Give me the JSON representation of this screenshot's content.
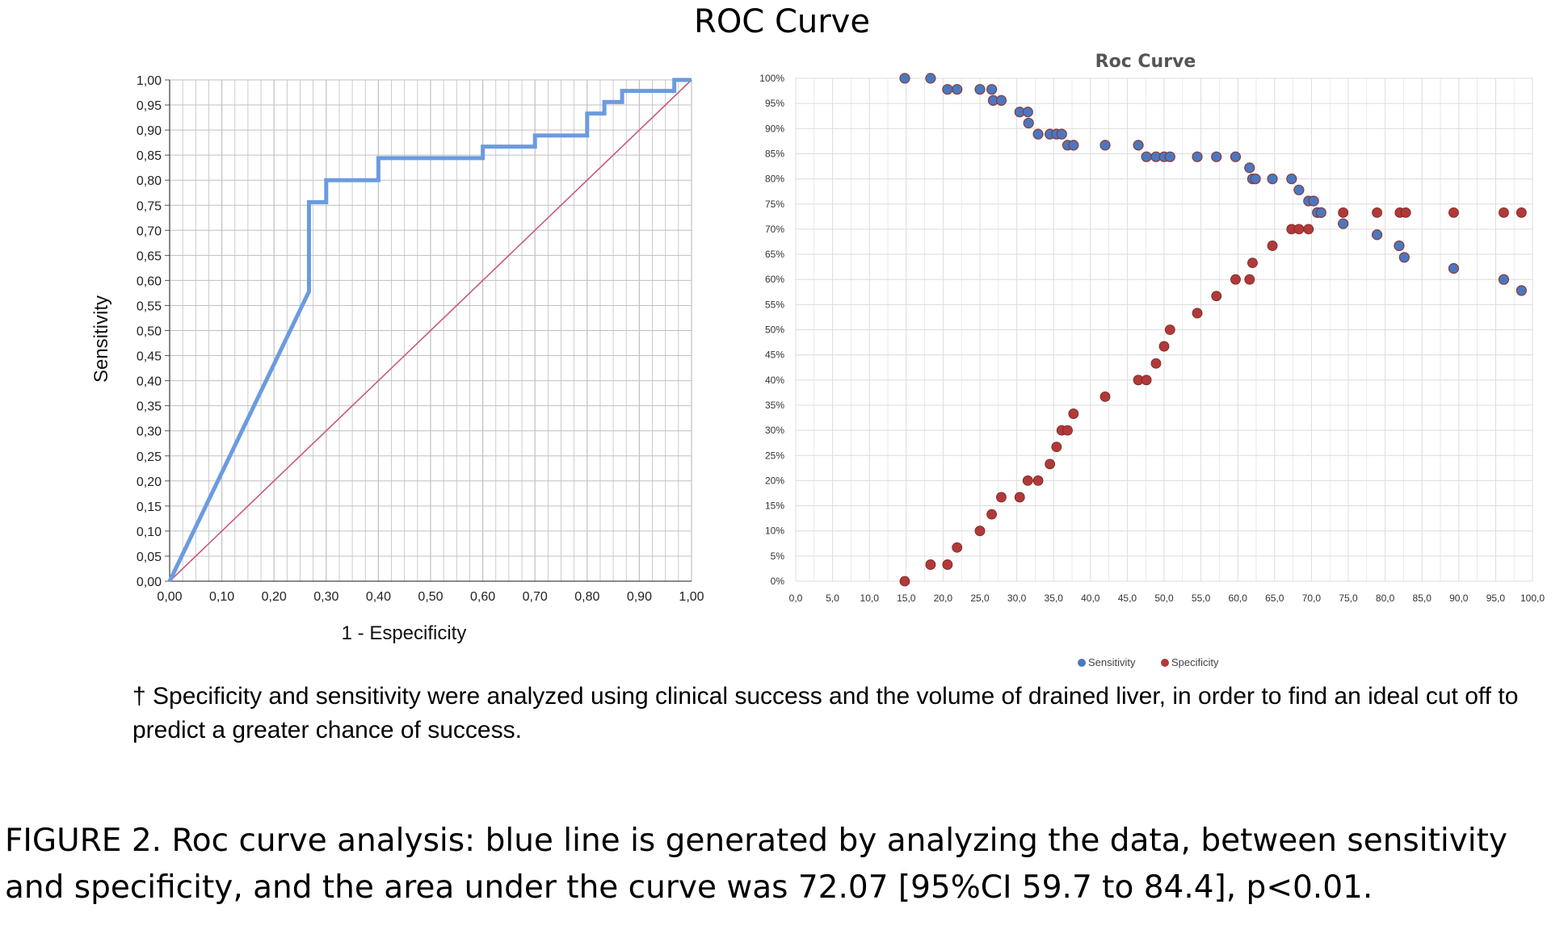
{
  "main_title": "ROC Curve",
  "footnote": "† Specificity and sensitivity were analyzed using clinical success and the volume of drained liver, in order to find an ideal cut off to predict a greater chance of success.",
  "caption": "FIGURE 2. Roc curve analysis: blue line is generated by analyzing the data, between sensitivity and specificity, and the area under the curve was 72.07 [95%CI 59.7 to 84.4], p<0.01.",
  "colors": {
    "roc_line": "#6b9be0",
    "reference_line": "#c85a78",
    "sensitivity": "#4a78c0",
    "specificity": "#b03a3a",
    "grid": "#c0c0c0"
  },
  "chart_data": [
    {
      "type": "line",
      "title": "",
      "xlabel": "1 - Especificity",
      "ylabel": "Sensitivity",
      "xlim": [
        0,
        1
      ],
      "ylim": [
        0,
        1
      ],
      "grid": true,
      "x_ticks": [
        "0,00",
        "0,10",
        "0,20",
        "0,30",
        "0,40",
        "0,50",
        "0,60",
        "0,70",
        "0,80",
        "0,90",
        "1,00"
      ],
      "y_ticks": [
        "0,00",
        "0,05",
        "0,10",
        "0,15",
        "0,20",
        "0,25",
        "0,30",
        "0,35",
        "0,40",
        "0,45",
        "0,50",
        "0,55",
        "0,60",
        "0,65",
        "0,70",
        "0,75",
        "0,80",
        "0,85",
        "0,90",
        "0,95",
        "1,00"
      ],
      "series": [
        {
          "x": [
            0,
            0.267,
            0.267,
            0.3,
            0.3,
            0.4,
            0.4,
            0.6,
            0.6,
            0.7,
            0.7,
            0.8,
            0.8,
            0.833,
            0.833,
            0.867,
            0.867,
            0.967,
            0.967,
            1.0
          ],
          "y": [
            0,
            0.578,
            0.756,
            0.756,
            0.8,
            0.8,
            0.844,
            0.844,
            0.867,
            0.867,
            0.889,
            0.889,
            0.933,
            0.933,
            0.956,
            0.956,
            0.978,
            0.978,
            1.0,
            1.0
          ]
        },
        {
          "x": [
            0,
            1
          ],
          "y": [
            0,
            1
          ]
        }
      ]
    },
    {
      "type": "scatter",
      "title": "Roc  Curve",
      "xlim": [
        0,
        100
      ],
      "ylim": [
        0,
        100
      ],
      "grid": true,
      "legend_position": "bottom",
      "x_ticks": [
        "0,0",
        "5,0",
        "10,0",
        "15,0",
        "20,0",
        "25,0",
        "30,0",
        "35,0",
        "40,0",
        "45,0",
        "50,0",
        "55,0",
        "60,0",
        "65,0",
        "70,0",
        "75,0",
        "80,0",
        "85,0",
        "90,0",
        "95,0",
        "100,0"
      ],
      "y_ticks": [
        "0%",
        "5%",
        "10%",
        "15%",
        "20%",
        "25%",
        "30%",
        "35%",
        "40%",
        "45%",
        "50%",
        "55%",
        "60%",
        "65%",
        "70%",
        "75%",
        "80%",
        "85%",
        "90%",
        "95%",
        "100%"
      ],
      "series": [
        {
          "name": "Sensitivity",
          "x": [
            14.8,
            18.3,
            20.6,
            21.9,
            25.0,
            26.6,
            26.8,
            27.9,
            30.4,
            31.5,
            31.6,
            32.9,
            34.5,
            35.4,
            36.1,
            36.9,
            37.7,
            42.0,
            46.5,
            47.6,
            48.9,
            50.0,
            50.8,
            54.5,
            57.1,
            59.7,
            61.6,
            62.0,
            62.4,
            64.7,
            67.3,
            68.3,
            69.6,
            70.3,
            70.8,
            71.3,
            74.3,
            78.9,
            81.9,
            82.6,
            89.3,
            96.1,
            98.5
          ],
          "y": [
            100,
            100,
            97.8,
            97.8,
            97.8,
            97.8,
            95.6,
            95.6,
            93.3,
            93.3,
            91.1,
            88.9,
            88.9,
            88.9,
            88.9,
            86.7,
            86.7,
            86.7,
            86.7,
            84.4,
            84.4,
            84.4,
            84.4,
            84.4,
            84.4,
            84.4,
            82.2,
            80.0,
            80.0,
            80.0,
            80.0,
            77.8,
            75.6,
            75.6,
            73.3,
            73.3,
            71.1,
            68.9,
            66.7,
            64.4,
            62.2,
            60.0,
            57.8
          ]
        },
        {
          "name": "Specificity",
          "x": [
            14.8,
            18.3,
            20.6,
            21.9,
            25.0,
            26.6,
            27.9,
            30.4,
            31.5,
            32.9,
            34.5,
            35.4,
            36.1,
            36.9,
            37.7,
            42.0,
            46.5,
            47.6,
            48.9,
            50.0,
            50.8,
            54.5,
            57.1,
            59.7,
            61.6,
            62.0,
            64.7,
            67.3,
            68.3,
            69.6,
            70.8,
            71.3,
            74.3,
            78.9,
            82.0,
            82.8,
            89.3,
            96.1,
            98.5
          ],
          "y": [
            0,
            3.3,
            3.3,
            6.7,
            10.0,
            13.3,
            16.7,
            16.7,
            20.0,
            20.0,
            23.3,
            26.7,
            30.0,
            30.0,
            33.3,
            36.7,
            40.0,
            40.0,
            43.3,
            46.7,
            50.0,
            53.3,
            56.7,
            60.0,
            60.0,
            63.3,
            66.7,
            70.0,
            70.0,
            70.0,
            73.3,
            73.3,
            73.3,
            73.3,
            73.3,
            73.3,
            73.3,
            73.3,
            73.3
          ]
        }
      ]
    }
  ]
}
